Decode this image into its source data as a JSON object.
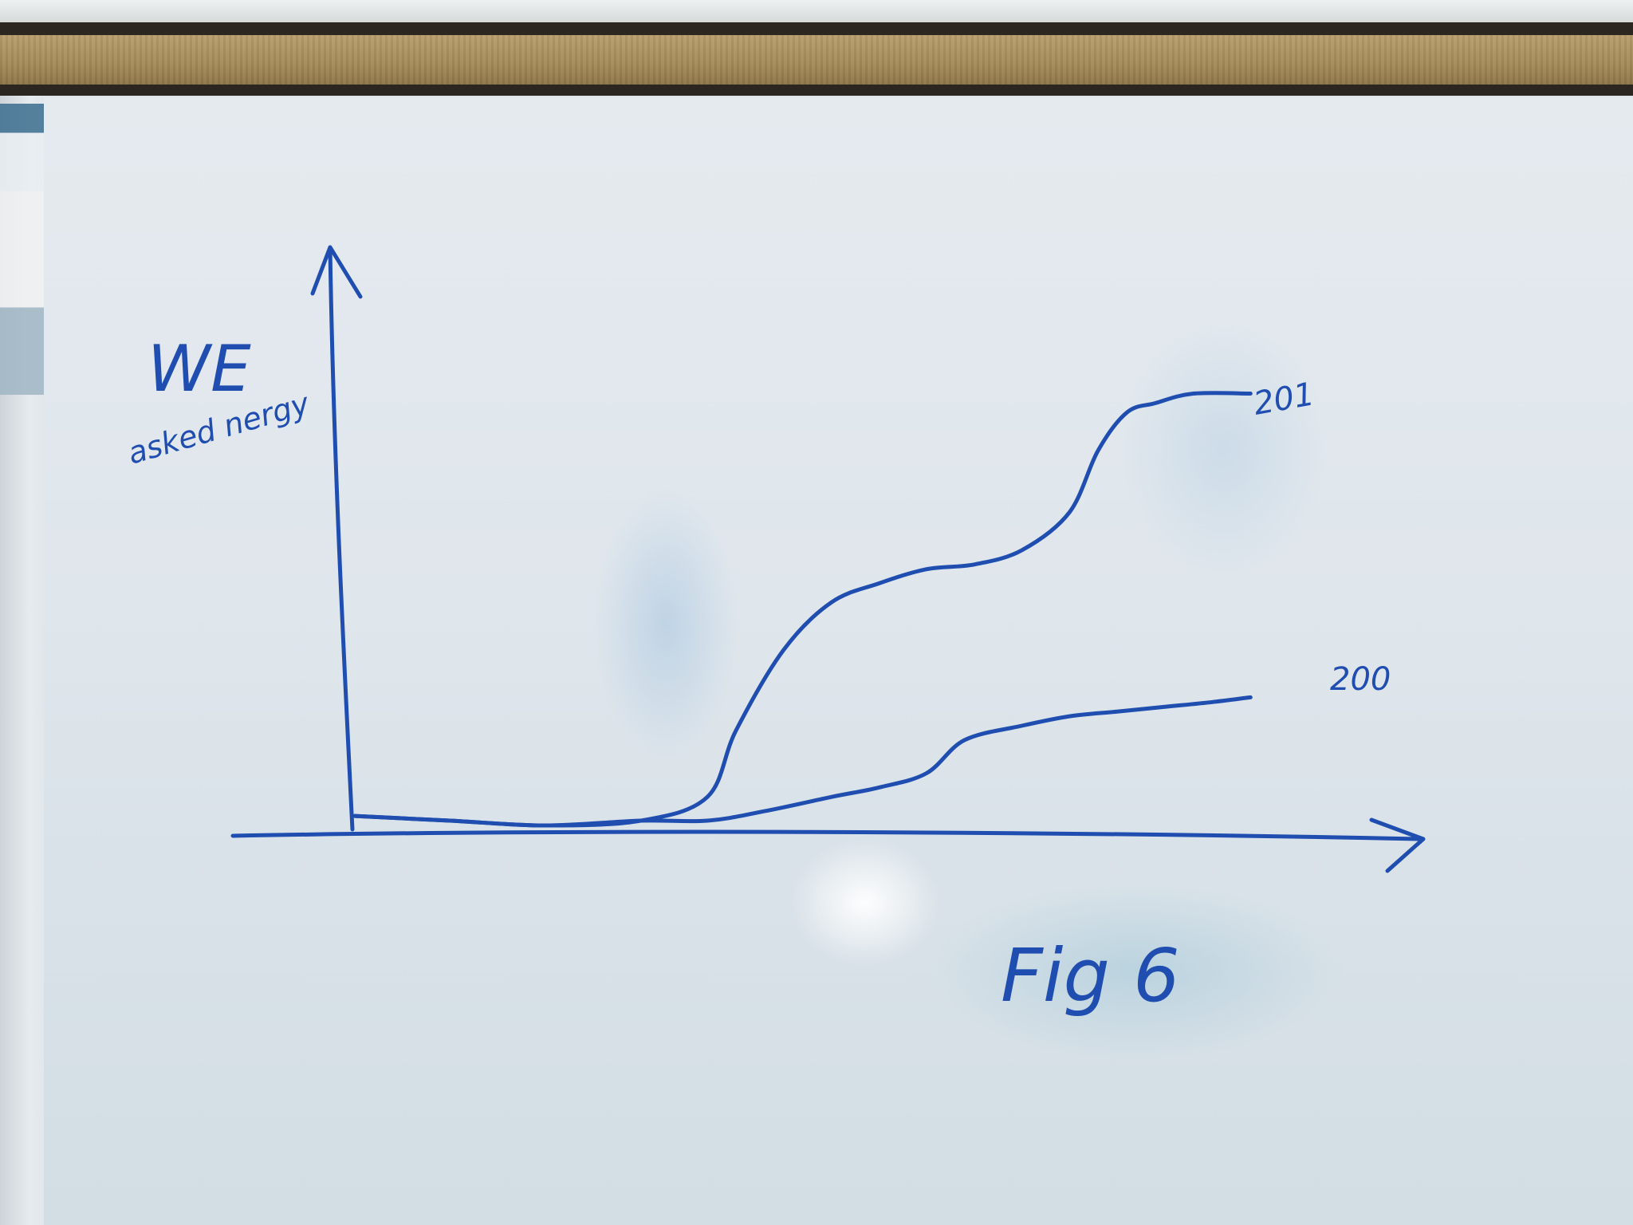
{
  "chart_data": {
    "type": "line",
    "ylabel": "WE",
    "ylabel_sub": "asked nergy",
    "caption": "Fig 6",
    "grid": false,
    "axis_ranges": {
      "x": [
        0,
        100
      ],
      "y": [
        0,
        100
      ]
    },
    "series": [
      {
        "name": "201",
        "color": "#1f4eb0",
        "x": [
          0,
          10,
          20,
          30,
          37,
          40,
          45,
          50,
          55,
          60,
          65,
          70,
          75,
          78,
          81,
          84,
          88,
          94
        ],
        "y": [
          2,
          1,
          0,
          1,
          6,
          20,
          37,
          47,
          51,
          54,
          55,
          58,
          66,
          79,
          87,
          89,
          91,
          91
        ]
      },
      {
        "name": "200",
        "color": "#1f4eb0",
        "x": [
          0,
          10,
          20,
          30,
          37,
          43,
          50,
          55,
          60,
          64,
          70,
          75,
          80,
          85,
          90,
          94
        ],
        "y": [
          2,
          1,
          0,
          1,
          1,
          3,
          6,
          8,
          11,
          18,
          21,
          23,
          24,
          25,
          26,
          27
        ]
      }
    ]
  }
}
